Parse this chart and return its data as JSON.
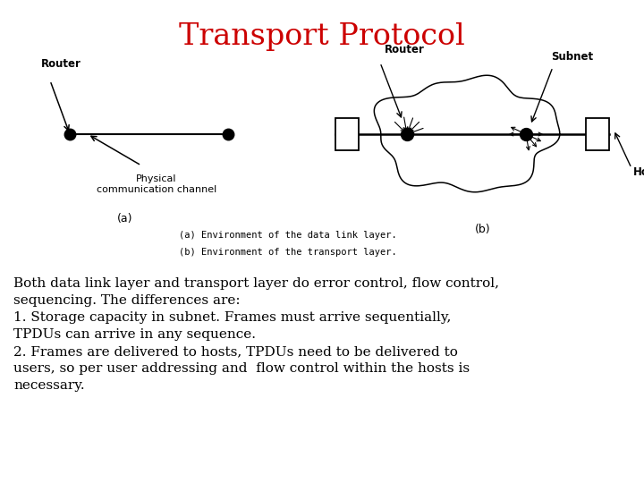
{
  "title": "Transport Protocol",
  "title_color": "#CC0000",
  "title_fontsize": 24,
  "bg_color": "#ffffff",
  "caption_a": "(a) Environment of the data link layer.",
  "caption_b": "(b) Environment of the transport layer.",
  "label_a": "(a)",
  "label_b": "(b)",
  "body_line1": "Both data link layer and transport layer do error control, flow control,",
  "body_line2": "sequencing. The differences are:",
  "body_line3": "1. Storage capacity in subnet. Frames must arrive sequentially,",
  "body_line4": "TPDUs can arrive in any sequence.",
  "body_line5": "2. Frames are delivered to hosts, TPDUs need to be delivered to",
  "body_line6": "users, so per user addressing and  flow control within the hosts is",
  "body_line7": "necessary.",
  "body_fontsize": 11,
  "router_label_a": "Router",
  "phys_channel": "Physical\ncommunication channel",
  "router_label_b": "Router",
  "subnet_label": "Subnet",
  "host_label": "Host"
}
